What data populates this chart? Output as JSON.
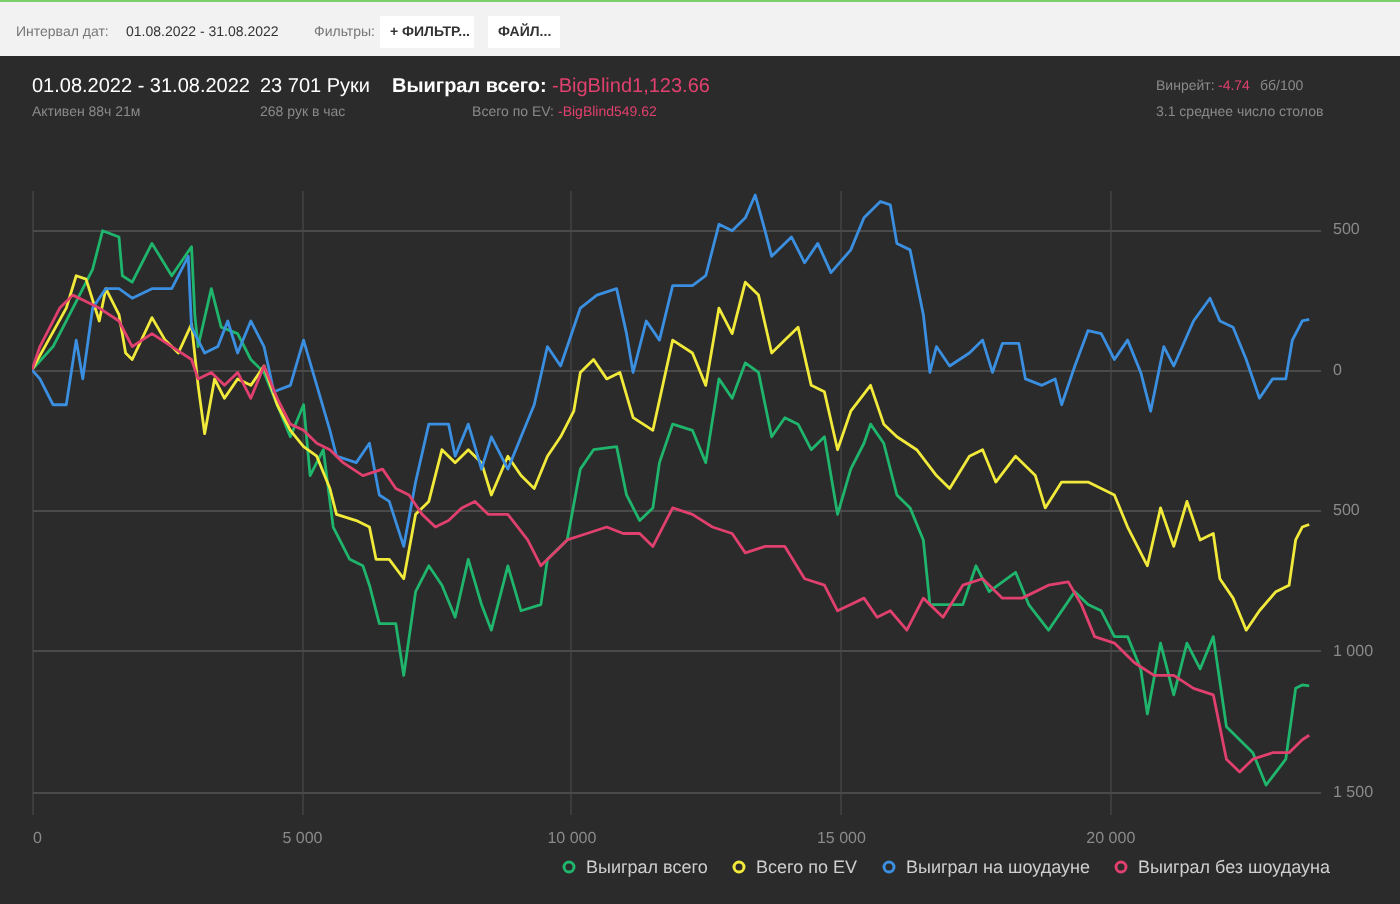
{
  "chart_data": {
    "type": "line",
    "title": "01.08.2022 - 31.08.2022",
    "subtitle": "Активен 88ч 21м",
    "annotations": [
      "Интервал дат:",
      "01.08.2022 - 31.08.2022",
      "Фильтры:",
      "+ ФИЛЬТР...",
      "ФАЙЛ...",
      "23 701 Руки",
      "268 рук в час",
      "Выиграл всего:",
      "-BigBlind1,123.66",
      "Всего по EV:",
      "-BigBlind549.62",
      "Винрейт:",
      "-4.74",
      "бб/100",
      "3.1 среднее число столов"
    ],
    "xlim": [
      0,
      23900
    ],
    "ylim": [
      -1580,
      640
    ],
    "xticks": [
      0,
      {
        "value": 5000,
        "label": "5 000"
      },
      {
        "value": 10000,
        "label": "10 000"
      },
      {
        "value": 15000,
        "label": "15 000"
      },
      {
        "value": 20000,
        "label": "20 000"
      }
    ],
    "yticks": [
      500,
      0,
      {
        "value": -500,
        "label": "500"
      },
      {
        "value": -1000,
        "label": "1 000"
      },
      {
        "value": -1500,
        "label": "1 500"
      }
    ],
    "grid": true,
    "legend": "bottom right",
    "marker": "none",
    "line_style": "solid",
    "series": [
      {
        "name": "Выиграл всего",
        "color": "#1fb56c",
        "x": [
          0,
          391,
          758,
          1125,
          1309,
          1614,
          1676,
          1859,
          2226,
          2593,
          2960,
          3021,
          3082,
          3327,
          3510,
          3816,
          4060,
          4305,
          4550,
          4794,
          5039,
          5161,
          5406,
          5589,
          5895,
          6140,
          6262,
          6445,
          6751,
          6898,
          7118,
          7363,
          7607,
          7852,
          8096,
          8341,
          8524,
          8830,
          9075,
          9442,
          9564,
          9931,
          10175,
          10420,
          10848,
          11032,
          11276,
          11521,
          11643,
          11888,
          12255,
          12502,
          12747,
          12992,
          13236,
          13481,
          13725,
          13970,
          14215,
          14459,
          14704,
          14948,
          15193,
          15438,
          15560,
          15805,
          16049,
          16294,
          16539,
          16661,
          16905,
          17272,
          17517,
          17761,
          18251,
          18495,
          18862,
          19351,
          19596,
          19840,
          20085,
          20330,
          20574,
          20697,
          20941,
          21186,
          21431,
          21675,
          21920,
          22164,
          22409,
          22654,
          22898,
          23265,
          23448,
          23571,
          23700
        ],
        "values": [
          0,
          83,
          220,
          358,
          495,
          473,
          335,
          312,
          450,
          335,
          438,
          197,
          83,
          289,
          152,
          129,
          37,
          -9,
          -124,
          -238,
          -124,
          -376,
          -284,
          -559,
          -674,
          -697,
          -766,
          -903,
          -903,
          -1087,
          -789,
          -697,
          -766,
          -880,
          -674,
          -835,
          -926,
          -697,
          -857,
          -835,
          -674,
          -605,
          -353,
          -284,
          -273,
          -445,
          -536,
          -491,
          -330,
          -193,
          -215,
          -330,
          -32,
          -101,
          25,
          -9,
          -238,
          -170,
          -193,
          -284,
          -238,
          -514,
          -353,
          -261,
          -193,
          -261,
          -445,
          -491,
          -605,
          -835,
          -835,
          -835,
          -697,
          -789,
          -720,
          -835,
          -926,
          -789,
          -835,
          -857,
          -949,
          -949,
          -1064,
          -1224,
          -972,
          -1156,
          -972,
          -1064,
          -949,
          -1270,
          -1316,
          -1362,
          -1477,
          -1385,
          -1133,
          -1121,
          -1124
        ]
      },
      {
        "name": "Всего по EV",
        "color": "#f2ea3a",
        "x": [
          0,
          636,
          820,
          1003,
          1248,
          1370,
          1614,
          1737,
          1859,
          2226,
          2470,
          2715,
          2960,
          3082,
          3204,
          3388,
          3571,
          3816,
          4060,
          4305,
          4550,
          4794,
          5039,
          5284,
          5528,
          5650,
          6017,
          6262,
          6384,
          6629,
          6898,
          7118,
          7363,
          7607,
          7852,
          8096,
          8341,
          8524,
          8830,
          9075,
          9319,
          9564,
          9809,
          10053,
          10175,
          10420,
          10664,
          10909,
          11154,
          11521,
          11888,
          12255,
          12502,
          12747,
          12992,
          13236,
          13481,
          13725,
          13970,
          14215,
          14459,
          14704,
          14948,
          15193,
          15560,
          15805,
          16049,
          16416,
          16783,
          17028,
          17394,
          17639,
          17884,
          18251,
          18618,
          18801,
          19106,
          19596,
          20085,
          20330,
          20697,
          20941,
          21186,
          21431,
          21675,
          21920,
          22042,
          22287,
          22531,
          22776,
          23081,
          23326,
          23448,
          23571,
          23700
        ],
        "values": [
          0,
          220,
          335,
          323,
          174,
          289,
          197,
          60,
          37,
          186,
          106,
          60,
          163,
          -55,
          -227,
          -32,
          -101,
          -32,
          -55,
          14,
          -124,
          -215,
          -273,
          -307,
          -422,
          -514,
          -536,
          -559,
          -674,
          -674,
          -743,
          -514,
          -468,
          -284,
          -330,
          -284,
          -330,
          -445,
          -307,
          -376,
          -422,
          -307,
          -238,
          -147,
          -9,
          37,
          -32,
          -9,
          -170,
          -215,
          106,
          60,
          -55,
          220,
          129,
          312,
          266,
          60,
          106,
          152,
          -55,
          -78,
          -284,
          -147,
          -55,
          -193,
          -238,
          -284,
          -376,
          -422,
          -307,
          -284,
          -399,
          -307,
          -376,
          -491,
          -399,
          -399,
          -445,
          -559,
          -697,
          -491,
          -628,
          -468,
          -605,
          -582,
          -743,
          -812,
          -926,
          -857,
          -789,
          -766,
          -605,
          -559,
          -550
        ]
      },
      {
        "name": "Выиграл на шоудауне",
        "color": "#3b8fe0",
        "x": [
          0,
          147,
          391,
          636,
          820,
          942,
          1125,
          1370,
          1614,
          1859,
          2226,
          2593,
          2899,
          2960,
          3204,
          3449,
          3632,
          3816,
          4060,
          4305,
          4488,
          4794,
          5039,
          5284,
          5528,
          5650,
          6017,
          6262,
          6445,
          6629,
          6898,
          7118,
          7363,
          7730,
          7852,
          8096,
          8341,
          8524,
          8830,
          9075,
          9319,
          9564,
          9809,
          10175,
          10481,
          10848,
          11032,
          11154,
          11398,
          11643,
          11888,
          12255,
          12502,
          12747,
          12992,
          13236,
          13420,
          13603,
          13725,
          14092,
          14337,
          14581,
          14826,
          15193,
          15438,
          15743,
          15927,
          16049,
          16294,
          16539,
          16661,
          16783,
          17028,
          17394,
          17639,
          17822,
          18006,
          18312,
          18434,
          18740,
          18985,
          19106,
          19351,
          19596,
          19840,
          20085,
          20330,
          20574,
          20758,
          21002,
          21186,
          21553,
          21859,
          22042,
          22287,
          22531,
          22776,
          23020,
          23265,
          23387,
          23571,
          23700
        ],
        "values": [
          0,
          -32,
          -124,
          -124,
          106,
          -32,
          220,
          289,
          289,
          255,
          289,
          289,
          404,
          152,
          60,
          83,
          174,
          60,
          174,
          83,
          -78,
          -55,
          106,
          -55,
          -215,
          -307,
          -330,
          -261,
          -445,
          -468,
          -628,
          -399,
          -193,
          -193,
          -307,
          -193,
          -353,
          -238,
          -353,
          -238,
          -124,
          83,
          14,
          220,
          266,
          289,
          129,
          -9,
          174,
          106,
          300,
          300,
          335,
          518,
          495,
          541,
          622,
          495,
          404,
          473,
          381,
          450,
          346,
          427,
          541,
          599,
          587,
          450,
          427,
          197,
          -9,
          83,
          14,
          60,
          106,
          -9,
          94,
          94,
          -32,
          -55,
          -32,
          -124,
          14,
          140,
          129,
          37,
          106,
          -9,
          -147,
          83,
          14,
          174,
          255,
          174,
          152,
          37,
          -101,
          -32,
          -32,
          106,
          174,
          180
        ]
      },
      {
        "name": "Выиграл без шоудауна",
        "color": "#e0406e",
        "x": [
          0,
          147,
          514,
          758,
          1003,
          1248,
          1614,
          1859,
          2226,
          2593,
          2960,
          3082,
          3327,
          3571,
          3816,
          4060,
          4305,
          4550,
          4794,
          5039,
          5284,
          5528,
          5773,
          6140,
          6506,
          6751,
          6996,
          7240,
          7485,
          7730,
          7974,
          8219,
          8463,
          8830,
          9197,
          9442,
          9687,
          9931,
          10297,
          10664,
          10970,
          11276,
          11521,
          11888,
          12255,
          12625,
          12992,
          13236,
          13603,
          13970,
          14337,
          14704,
          14948,
          15193,
          15438,
          15682,
          15927,
          16233,
          16539,
          16905,
          17272,
          17639,
          18006,
          18373,
          18862,
          19229,
          19473,
          19718,
          20085,
          20452,
          20819,
          21186,
          21553,
          21920,
          22164,
          22409,
          22654,
          23020,
          23326,
          23571,
          23700
        ],
        "values": [
          0,
          83,
          220,
          266,
          243,
          220,
          174,
          83,
          129,
          83,
          37,
          -32,
          -9,
          -55,
          -9,
          -101,
          14,
          -101,
          -193,
          -215,
          -261,
          -284,
          -330,
          -376,
          -353,
          -422,
          -445,
          -514,
          -559,
          -536,
          -491,
          -468,
          -514,
          -514,
          -605,
          -697,
          -651,
          -605,
          -582,
          -559,
          -582,
          -582,
          -628,
          -491,
          -514,
          -559,
          -582,
          -651,
          -628,
          -628,
          -743,
          -766,
          -857,
          -835,
          -812,
          -880,
          -857,
          -926,
          -812,
          -880,
          -766,
          -743,
          -812,
          -812,
          -766,
          -754,
          -835,
          -949,
          -972,
          -1041,
          -1087,
          -1087,
          -1133,
          -1156,
          -1385,
          -1431,
          -1385,
          -1362,
          -1362,
          -1316,
          -1300
        ]
      }
    ]
  }
}
